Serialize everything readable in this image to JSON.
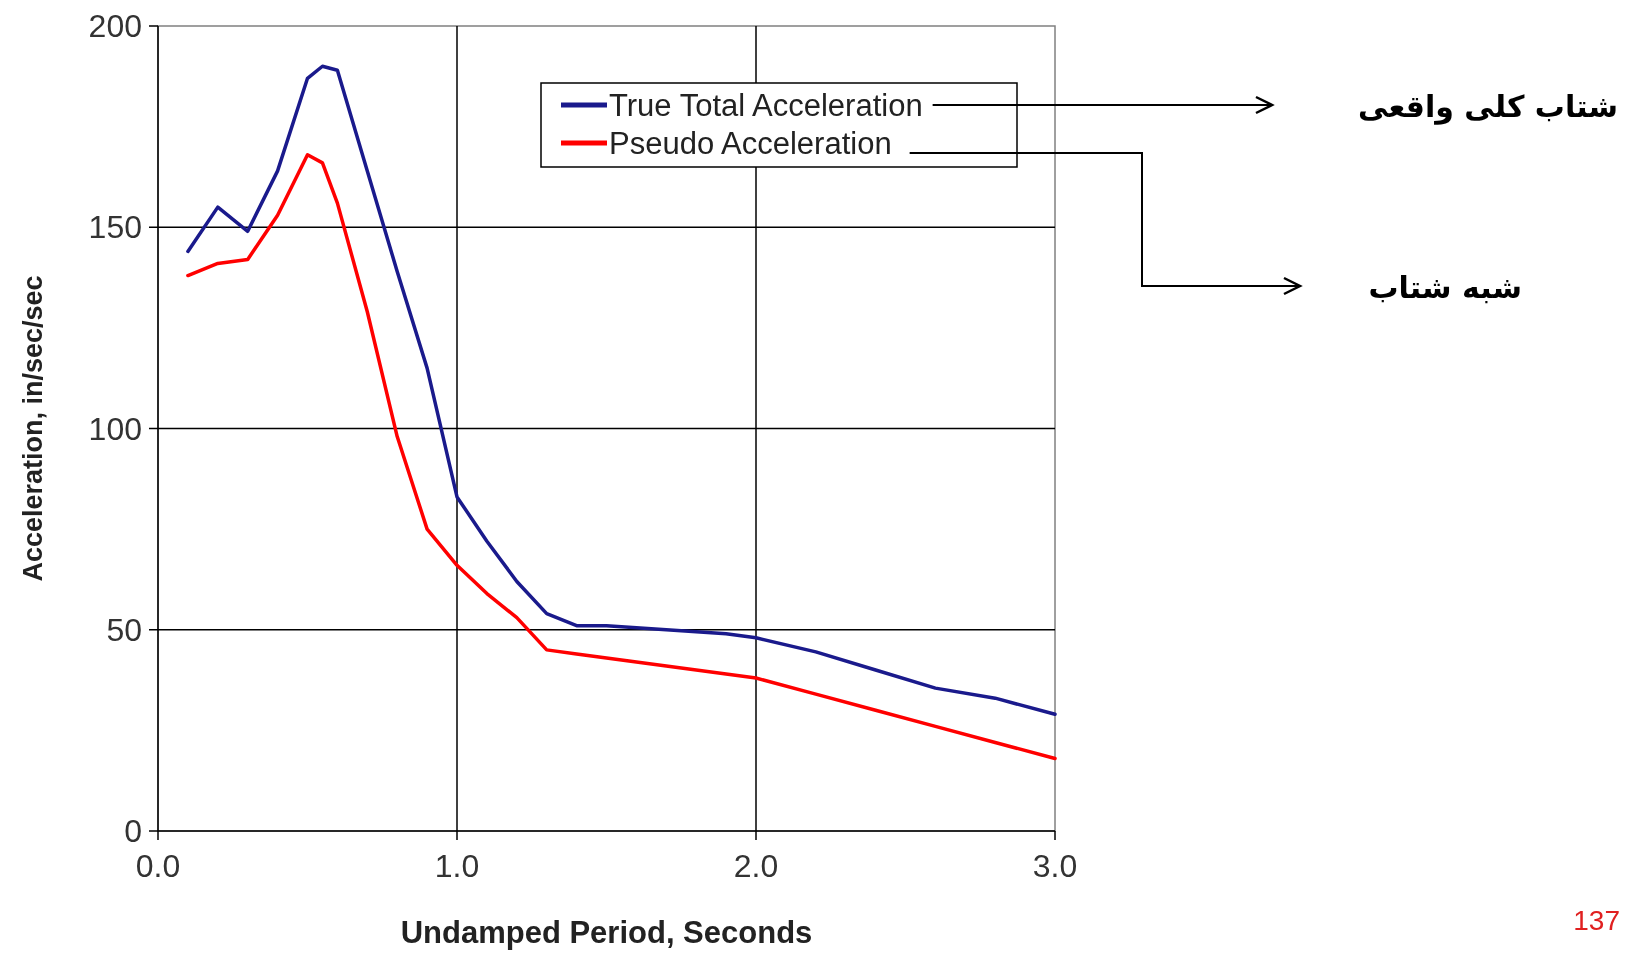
{
  "chart_data": {
    "type": "line",
    "xlabel": "Undamped Period, Seconds",
    "ylabel": "Acceleration, in/sec/sec",
    "x": [
      0.1,
      0.2,
      0.3,
      0.4,
      0.5,
      0.55,
      0.6,
      0.7,
      0.8,
      0.9,
      1.0,
      1.1,
      1.2,
      1.3,
      1.4,
      1.5,
      1.7,
      1.9,
      2.0,
      2.2,
      2.4,
      2.6,
      2.8,
      3.0
    ],
    "series": [
      {
        "name": "True Total Acceleration",
        "color": "#1a1a8c",
        "values": [
          144,
          155,
          149,
          164,
          187,
          190,
          189,
          164,
          139,
          115,
          83,
          72,
          62,
          54,
          51,
          51,
          50,
          49,
          48,
          44.5,
          40,
          35.5,
          33,
          29
        ]
      },
      {
        "name": "Pseudo Acceleration",
        "color": "#ff0000",
        "values": [
          138,
          141,
          142,
          153,
          168,
          166,
          156,
          129,
          98,
          75,
          66,
          59,
          53,
          45,
          44,
          43,
          41,
          39,
          38,
          34,
          30,
          26,
          22,
          18
        ]
      }
    ],
    "xlim": [
      0,
      3
    ],
    "ylim": [
      0,
      200
    ],
    "xticks": [
      {
        "value": 0,
        "label": "0.0"
      },
      {
        "value": 1,
        "label": "1.0"
      },
      {
        "value": 2,
        "label": "2.0"
      },
      {
        "value": 3,
        "label": "3.0"
      }
    ],
    "yticks": [
      0,
      50,
      100,
      150,
      200
    ],
    "grid": true,
    "legend": "top right",
    "marker": "none",
    "line_style": "solid",
    "annotations": [
      "شتاب کلی واقعی",
      "شبه شتاب",
      "137"
    ]
  }
}
